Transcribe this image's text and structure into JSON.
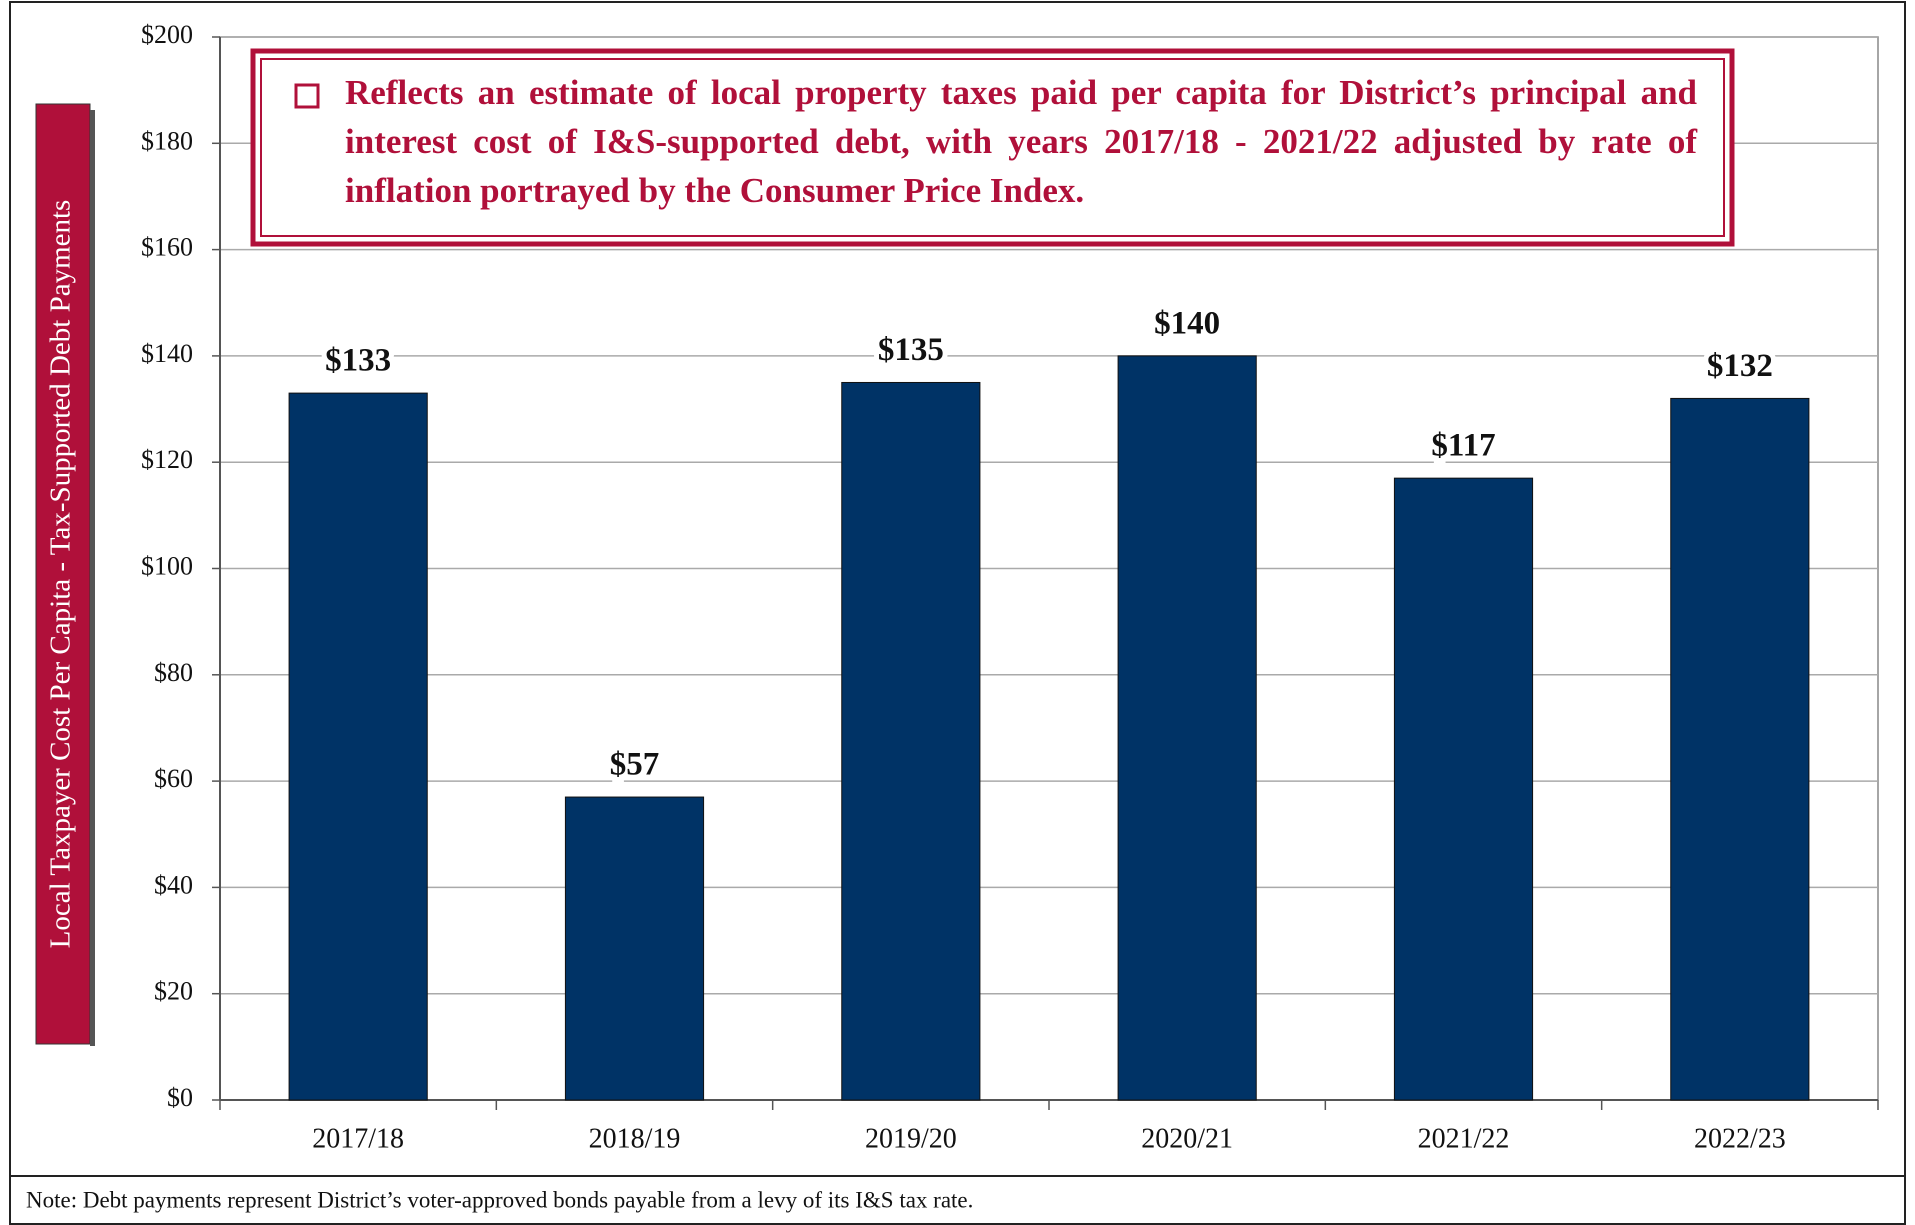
{
  "chart_data": {
    "type": "bar",
    "annotation": "Reflects an estimate of local property taxes paid per capita for District’s principal and interest cost of I&S-supported debt, with years 2017/18 - 2021/22 adjusted by rate of inflation portrayed by the Consumer Price Index.",
    "y_label": "Local Taxpayer Cost Per Capita - Tax-Supported Debt Payments",
    "note": "Note: Debt payments represent District’s voter-approved bonds payable from a levy of its I&S tax rate.",
    "categories": [
      "2017/18",
      "2018/19",
      "2019/20",
      "2020/21",
      "2021/22",
      "2022/23"
    ],
    "values": [
      133,
      57,
      135,
      140,
      117,
      132
    ],
    "value_labels": [
      "$133",
      "$57",
      "$135",
      "$140",
      "$117",
      "$132"
    ],
    "color": "#003366",
    "ylim": [
      0,
      200
    ],
    "yticks": [
      {
        "value": 0,
        "label": "$0"
      },
      {
        "value": 20,
        "label": "$20"
      },
      {
        "value": 40,
        "label": "$40"
      },
      {
        "value": 60,
        "label": "$60"
      },
      {
        "value": 80,
        "label": "$80"
      },
      {
        "value": 100,
        "label": "$100"
      },
      {
        "value": 120,
        "label": "$120"
      },
      {
        "value": 140,
        "label": "$140"
      },
      {
        "value": 160,
        "label": "$160"
      },
      {
        "value": 180,
        "label": "$180"
      },
      {
        "value": 200,
        "label": "$200"
      }
    ],
    "grid": true
  }
}
